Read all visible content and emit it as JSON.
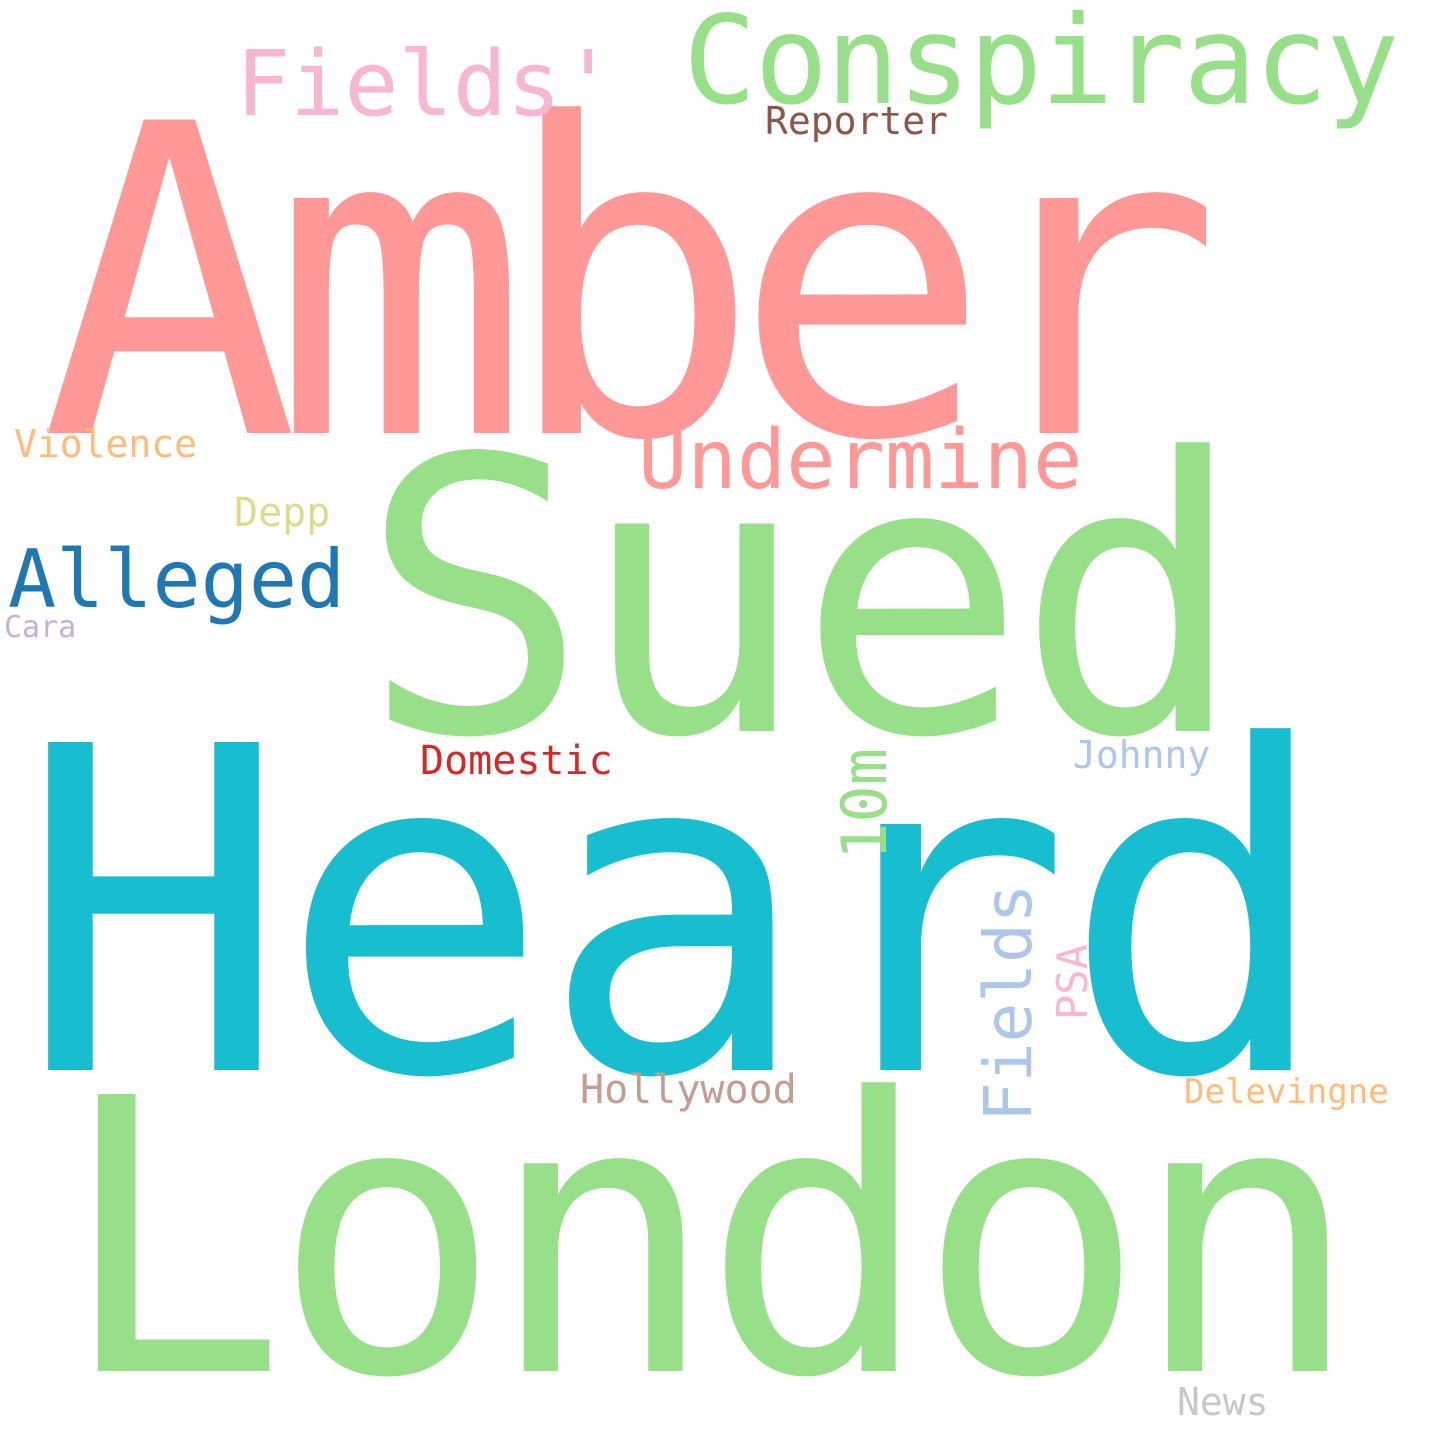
{
  "background": "#ffffff",
  "words": {
    "amber": {
      "text": "Amber",
      "color": "#ff9896"
    },
    "heard": {
      "text": "Heard",
      "color": "#17becf"
    },
    "london": {
      "text": "London",
      "color": "#98df8a"
    },
    "sued": {
      "text": "Sued",
      "color": "#98df8a"
    },
    "conspiracy": {
      "text": "Conspiracy",
      "color": "#98df8a"
    },
    "fields_q": {
      "text": "Fields'",
      "color": "#f7b6d2"
    },
    "undermine": {
      "text": "Undermine",
      "color": "#ff9896"
    },
    "alleged": {
      "text": "Alleged",
      "color": "#1f77b4"
    },
    "reporter": {
      "text": "Reporter",
      "color": "#8c564b"
    },
    "violence": {
      "text": "Violence",
      "color": "#ffbb78"
    },
    "depp": {
      "text": "Depp",
      "color": "#dbdb8d"
    },
    "cara": {
      "text": "Cara",
      "color": "#c5b0d5"
    },
    "domestic": {
      "text": "Domestic",
      "color": "#d62728"
    },
    "johnny": {
      "text": "Johnny",
      "color": "#aec7e8"
    },
    "tenm": {
      "text": "10m",
      "color": "#98df8a"
    },
    "fields": {
      "text": "Fields",
      "color": "#aec7e8"
    },
    "psa": {
      "text": "PSA",
      "color": "#f7b6d2"
    },
    "hollywood": {
      "text": "Hollywood",
      "color": "#c49c94"
    },
    "delevingne": {
      "text": "Delevingne",
      "color": "#ffbb78"
    },
    "news": {
      "text": "News",
      "color": "#c7c7c7"
    }
  }
}
